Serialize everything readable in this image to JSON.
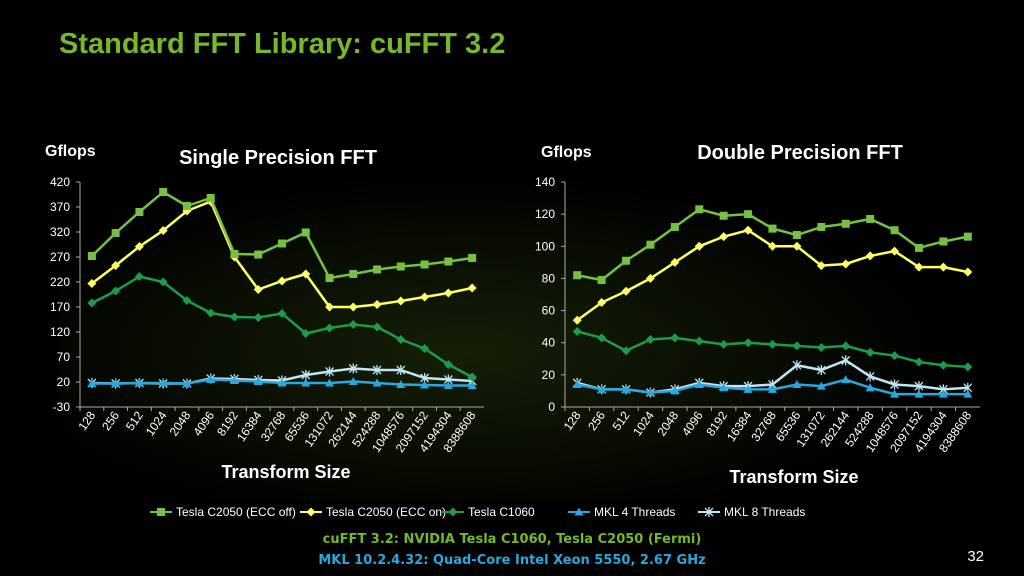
{
  "slide": {
    "title": "Standard FFT Library: cuFFT 3.2",
    "footer_line1": "cuFFT 3.2: NVIDIA Tesla C1060, Tesla C2050 (Fermi)",
    "footer_line2": "MKL 10.2.4.32: Quad-Core Intel Xeon 5550, 2.67 GHz",
    "page_number": "32"
  },
  "legend": [
    {
      "name": "Tesla C2050 (ECC off)",
      "color": "#76c043",
      "marker": "square"
    },
    {
      "name": "Tesla C2050 (ECC on)",
      "color": "#ffff66",
      "marker": "diamond"
    },
    {
      "name": "Tesla C1060",
      "color": "#1e9b4a",
      "marker": "diamond"
    },
    {
      "name": "MKL 4 Threads",
      "color": "#29a8e0",
      "marker": "triangle"
    },
    {
      "name": "MKL 8 Threads",
      "color": "#bfe6f2",
      "marker": "star"
    }
  ],
  "chart_data": [
    {
      "type": "line",
      "title": "Single Precision FFT",
      "ylabel": "Gflops",
      "xlabel": "Transform Size",
      "ylim": [
        -30,
        420
      ],
      "yticks": [
        -30,
        20,
        70,
        120,
        170,
        220,
        270,
        320,
        370,
        420
      ],
      "categories": [
        "128",
        "256",
        "512",
        "1024",
        "2048",
        "4096",
        "8192",
        "16384",
        "32768",
        "65536",
        "131072",
        "262144",
        "524288",
        "1048576",
        "2097152",
        "4194304",
        "8388608"
      ],
      "series": [
        {
          "name": "Tesla C2050 (ECC off)",
          "values": [
            272,
            318,
            360,
            400,
            372,
            388,
            276,
            275,
            297,
            319,
            228,
            236,
            245,
            251,
            255,
            261,
            268
          ]
        },
        {
          "name": "Tesla C2050 (ECC on)",
          "values": [
            217,
            253,
            291,
            323,
            362,
            381,
            270,
            205,
            222,
            236,
            170,
            170,
            175,
            182,
            190,
            198,
            208
          ]
        },
        {
          "name": "Tesla C1060",
          "values": [
            178,
            202,
            231,
            220,
            183,
            158,
            150,
            149,
            157,
            117,
            128,
            135,
            130,
            105,
            87,
            55,
            30
          ]
        },
        {
          "name": "MKL 4 Threads",
          "values": [
            17,
            17,
            18,
            18,
            17,
            25,
            23,
            21,
            18,
            18,
            18,
            21,
            18,
            15,
            14,
            13,
            13
          ]
        },
        {
          "name": "MKL 8 Threads",
          "values": [
            18,
            17,
            18,
            17,
            17,
            27,
            26,
            24,
            23,
            34,
            41,
            47,
            44,
            44,
            28,
            25,
            22
          ]
        }
      ]
    },
    {
      "type": "line",
      "title": "Double Precision FFT",
      "ylabel": "Gflops",
      "xlabel": "Transform Size",
      "ylim": [
        0,
        140
      ],
      "yticks": [
        0,
        20,
        40,
        60,
        80,
        100,
        120,
        140
      ],
      "categories": [
        "128",
        "256",
        "512",
        "1024",
        "2048",
        "4096",
        "8192",
        "16384",
        "32768",
        "65536",
        "131072",
        "262144",
        "524288",
        "1048576",
        "2097152",
        "4194304",
        "8388608"
      ],
      "series": [
        {
          "name": "Tesla C2050 (ECC off)",
          "values": [
            82,
            79,
            91,
            101,
            112,
            123,
            119,
            120,
            111,
            107,
            112,
            114,
            117,
            110,
            99,
            103,
            106
          ]
        },
        {
          "name": "Tesla C2050 (ECC on)",
          "values": [
            54,
            65,
            72,
            80,
            90,
            100,
            106,
            110,
            100,
            100,
            88,
            89,
            94,
            97,
            87,
            87,
            84
          ]
        },
        {
          "name": "Tesla C1060",
          "values": [
            47,
            43,
            35,
            42,
            43,
            41,
            39,
            40,
            39,
            38,
            37,
            38,
            34,
            32,
            28,
            26,
            25
          ]
        },
        {
          "name": "MKL 4 Threads",
          "values": [
            14,
            11,
            11,
            9,
            10,
            14,
            12,
            11,
            11,
            14,
            13,
            17,
            12,
            8,
            8,
            8,
            8
          ]
        },
        {
          "name": "MKL 8 Threads",
          "values": [
            15,
            11,
            11,
            9,
            11,
            15,
            13,
            13,
            14,
            26,
            23,
            29,
            19,
            14,
            13,
            11,
            12
          ]
        }
      ]
    }
  ]
}
